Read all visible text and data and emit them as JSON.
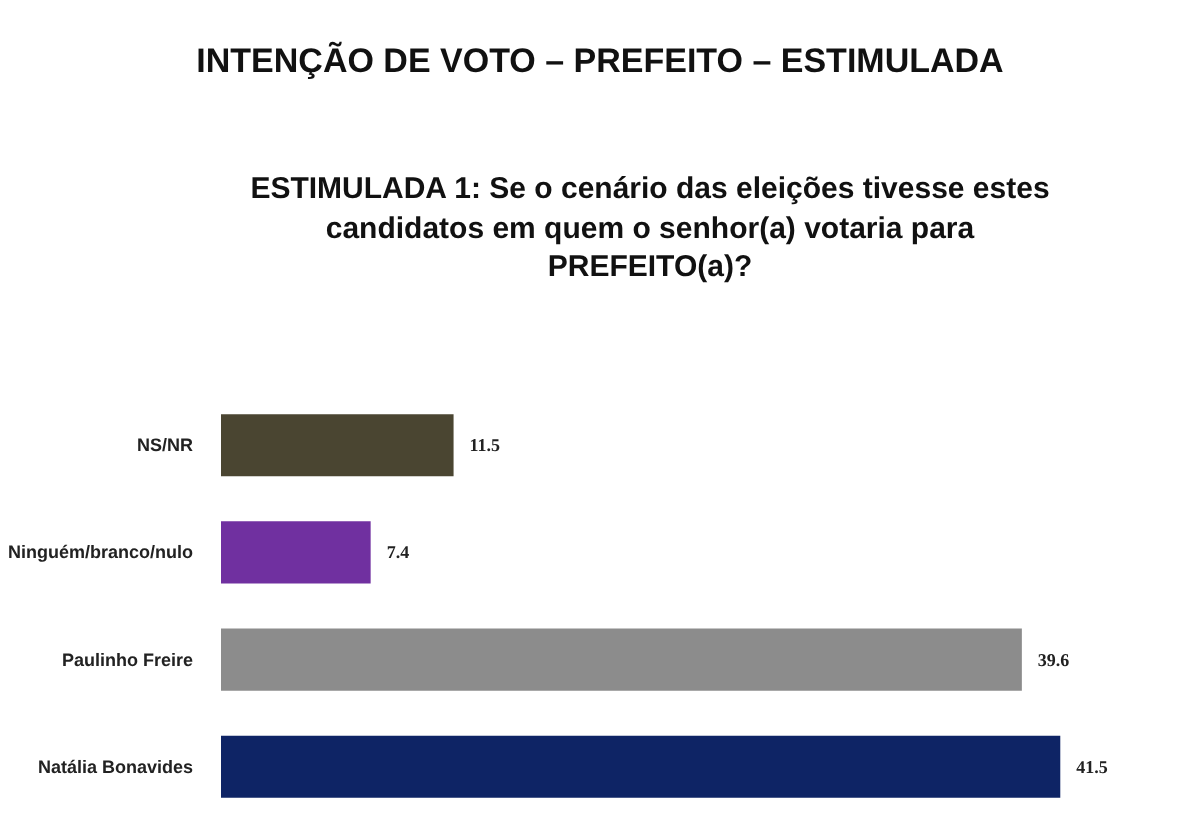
{
  "chart_data": {
    "type": "bar",
    "orientation": "horizontal",
    "title": "INTENÇÃO DE VOTO – PREFEITO – ESTIMULADA",
    "subtitle": "ESTIMULADA 1: Se o cenário das eleições tivesse estes candidatos em quem o senhor(a) votaria para PREFEITO(a)?",
    "categories": [
      "NS/NR",
      "Ninguém/branco/nulo",
      "Paulinho Freire",
      "Natália Bonavides"
    ],
    "values": [
      11.5,
      7.4,
      39.6,
      41.5
    ],
    "colors": [
      "#4a4531",
      "#7030a0",
      "#8c8c8c",
      "#0e2465"
    ],
    "data_labels": true,
    "grid": false
  }
}
